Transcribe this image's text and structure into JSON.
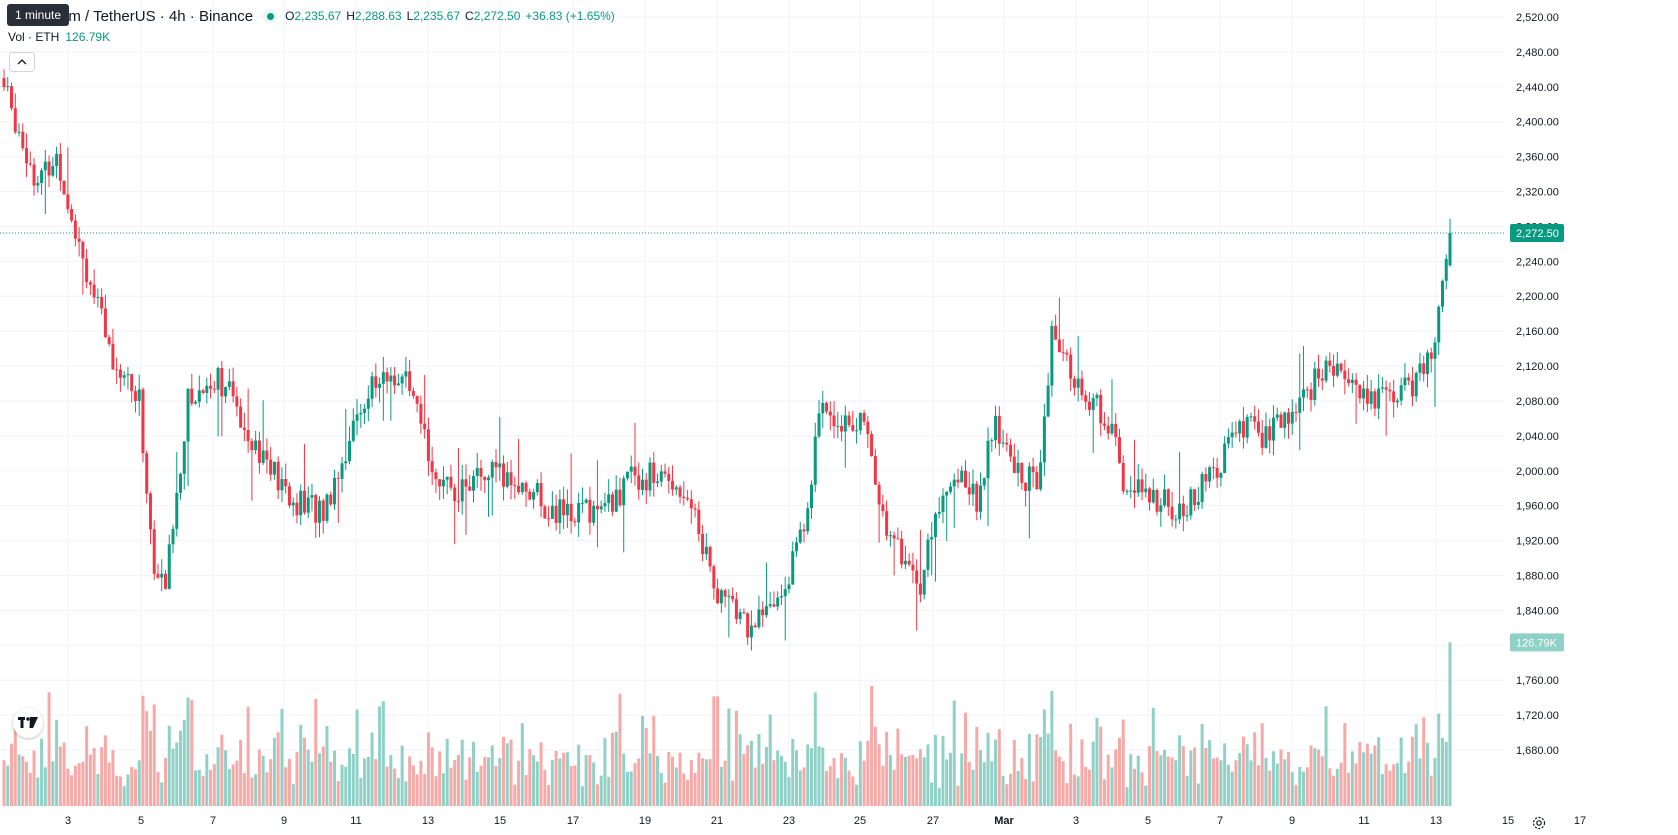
{
  "tooltip": "1 minute",
  "legend": {
    "title": "um / TetherUS · 4h · Binance",
    "open_label": "O",
    "open": "2,235.67",
    "high_label": "H",
    "high": "2,288.63",
    "low_label": "L",
    "low": "2,235.67",
    "close_label": "C",
    "close": "2,272.50",
    "change": "+36.83 (+1.65%)"
  },
  "volume_legend": {
    "label": "Vol · ETH",
    "value": "126.79K"
  },
  "colors": {
    "up": "#089981",
    "down": "#f23645",
    "up_volume": "#8fd1c6",
    "down_volume": "#f7a9a7"
  },
  "icons": {
    "collapse": "chevron-up-icon",
    "logo": "tradingview-logo-icon",
    "settings": "settings-icon"
  },
  "chart_data": {
    "type": "candlestick",
    "price_axis": {
      "ticks": [
        "2,520.00",
        "2,480.00",
        "2,440.00",
        "2,400.00",
        "2,360.00",
        "2,320.00",
        "2,280.00",
        "2,240.00",
        "2,200.00",
        "2,160.00",
        "2,120.00",
        "2,080.00",
        "2,040.00",
        "2,000.00",
        "1,960.00",
        "1,920.00",
        "1,880.00",
        "1,840.00",
        "1,800.00",
        "1,760.00",
        "1,720.00",
        "1,680.00"
      ],
      "range": [
        1670,
        2530
      ]
    },
    "time_axis": {
      "ticks": [
        "3",
        "5",
        "7",
        "9",
        "11",
        "13",
        "15",
        "17",
        "19",
        "21",
        "23",
        "25",
        "27",
        "Mar",
        "3",
        "5",
        "7",
        "9",
        "11",
        "13",
        "15",
        "17"
      ],
      "bold": [
        "Mar"
      ]
    },
    "last_price_label": "2,272.50",
    "last_price": 2272.5,
    "last_volume_label": "126.79K",
    "last_volume": 126.79,
    "volume_max": 155,
    "volume_unit": "K",
    "anchors": [
      [
        0,
        2440
      ],
      [
        9,
        2330
      ],
      [
        14,
        2360
      ],
      [
        24,
        2200
      ],
      [
        28,
        2140
      ],
      [
        36,
        2080
      ],
      [
        40,
        1880
      ],
      [
        43,
        1870
      ],
      [
        49,
        2080
      ],
      [
        57,
        2110
      ],
      [
        66,
        2040
      ],
      [
        76,
        1965
      ],
      [
        85,
        1955
      ],
      [
        97,
        2095
      ],
      [
        106,
        2110
      ],
      [
        117,
        1975
      ],
      [
        130,
        1995
      ],
      [
        140,
        1980
      ],
      [
        146,
        1950
      ],
      [
        161,
        1960
      ],
      [
        168,
        1995
      ],
      [
        178,
        1990
      ],
      [
        182,
        1975
      ],
      [
        190,
        1860
      ],
      [
        199,
        1820
      ],
      [
        206,
        1850
      ],
      [
        212,
        1920
      ],
      [
        218,
        2080
      ],
      [
        223,
        2060
      ],
      [
        229,
        2050
      ],
      [
        234,
        1950
      ],
      [
        238,
        1910
      ],
      [
        244,
        1870
      ],
      [
        249,
        1960
      ],
      [
        253,
        2000
      ],
      [
        259,
        1970
      ],
      [
        264,
        2050
      ],
      [
        269,
        2000
      ],
      [
        275,
        1985
      ],
      [
        279,
        2150
      ],
      [
        287,
        2090
      ],
      [
        295,
        2050
      ],
      [
        298,
        1980
      ],
      [
        306,
        1970
      ],
      [
        314,
        1950
      ],
      [
        322,
        2000
      ],
      [
        330,
        2050
      ],
      [
        337,
        2040
      ],
      [
        343,
        2065
      ],
      [
        350,
        2110
      ],
      [
        357,
        2120
      ],
      [
        363,
        2080
      ],
      [
        372,
        2090
      ],
      [
        378,
        2110
      ],
      [
        382,
        2180
      ],
      [
        385,
        2272.5
      ]
    ]
  }
}
